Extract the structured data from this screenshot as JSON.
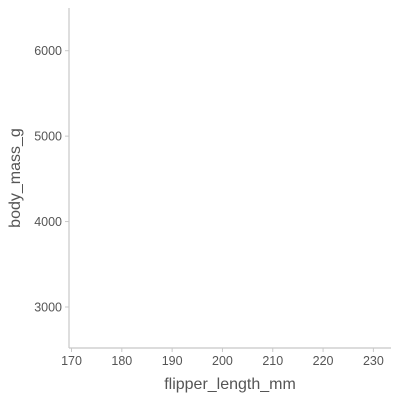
{
  "chart_data": {
    "type": "scatter",
    "title": "",
    "xlabel": "flipper_length_mm",
    "ylabel": "body_mass_g",
    "x_ticks": [
      170,
      180,
      190,
      200,
      210,
      220,
      230
    ],
    "y_ticks": [
      3000,
      4000,
      5000,
      6000
    ],
    "xlim": [
      169.5,
      233.5
    ],
    "ylim": [
      2520,
      6500
    ],
    "grid": false,
    "series": []
  }
}
